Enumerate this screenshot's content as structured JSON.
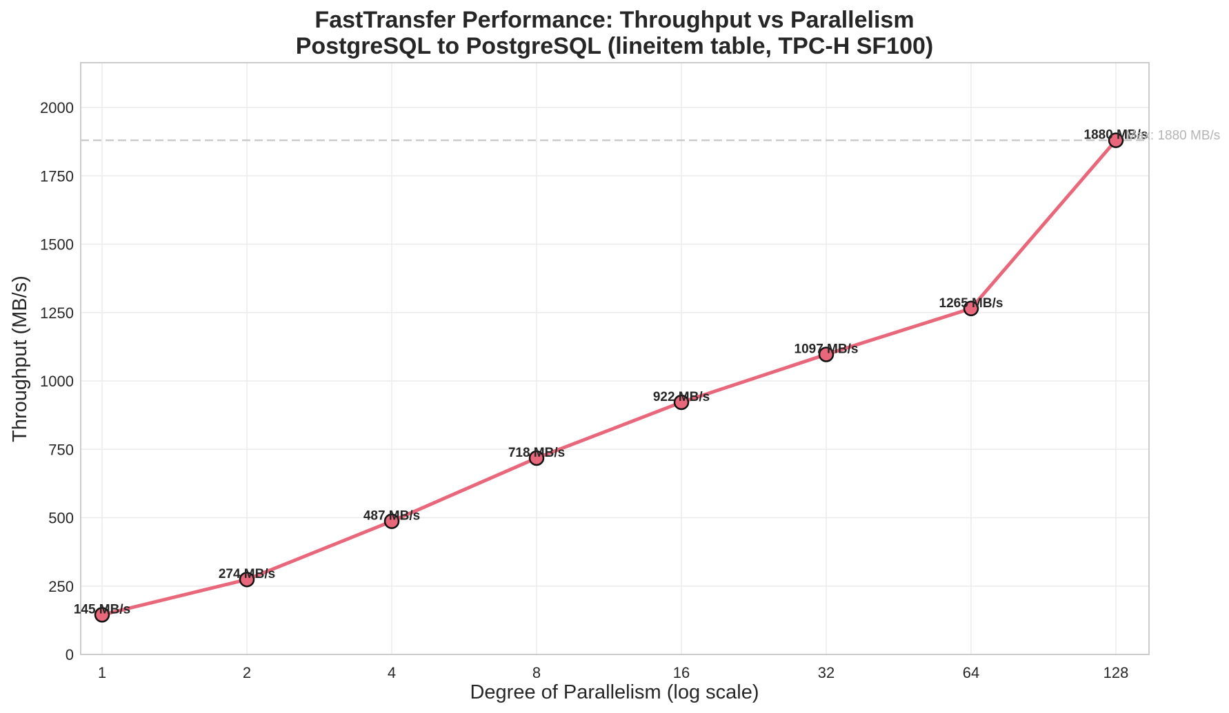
{
  "chart_data": {
    "type": "line",
    "title": "FastTransfer Performance: Throughput vs Parallelism",
    "subtitle": "PostgreSQL to PostgreSQL (lineitem table, TPC-H SF100)",
    "xlabel": "Degree of Parallelism (log scale)",
    "ylabel": "Throughput (MB/s)",
    "x_scale": "log2",
    "x": [
      1,
      2,
      4,
      8,
      16,
      32,
      64,
      128
    ],
    "x_tick_labels": [
      "1",
      "2",
      "4",
      "8",
      "16",
      "32",
      "64",
      "128"
    ],
    "y_ticks": [
      0,
      250,
      500,
      750,
      1000,
      1250,
      1500,
      1750,
      2000
    ],
    "ylim": [
      0,
      2160
    ],
    "grid": true,
    "legend": null,
    "series": [
      {
        "name": "Throughput",
        "color": "#e8677a",
        "marker_edge_color": "#111111",
        "values": [
          145,
          274,
          487,
          718,
          922,
          1097,
          1265,
          1880
        ]
      }
    ],
    "data_labels": [
      "145 MB/s",
      "274 MB/s",
      "487 MB/s",
      "718 MB/s",
      "922 MB/s",
      "1097 MB/s",
      "1265 MB/s",
      "1880 MB/s"
    ],
    "reference_line": {
      "value": 1880,
      "label": "Max: 1880 MB/s",
      "color": "#cccccc",
      "style": "dashed"
    }
  }
}
